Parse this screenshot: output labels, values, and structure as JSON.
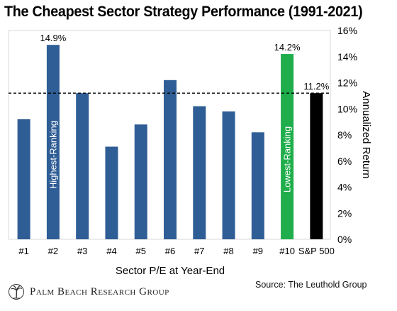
{
  "title": "The Cheapest Sector Strategy Performance (1991-2021)",
  "source": "Source: The Leuthold Group",
  "logo": {
    "text": "Palm Beach Research Group",
    "icon": "palm-tree-icon"
  },
  "chart_data": {
    "type": "bar",
    "title": "The Cheapest Sector Strategy Performance (1991-2021)",
    "xlabel": "Sector P/E at Year-End",
    "ylabel": "Annualized  Return",
    "categories": [
      "#1",
      "#2",
      "#3",
      "#4",
      "#5",
      "#6",
      "#7",
      "#8",
      "#9",
      "#10",
      "S&P 500"
    ],
    "values": [
      9.2,
      14.9,
      11.2,
      7.1,
      8.8,
      12.2,
      10.2,
      9.8,
      8.2,
      14.2,
      11.2
    ],
    "bar_colors": [
      "#2f5d95",
      "#2f5d95",
      "#2f5d95",
      "#2f5d95",
      "#2f5d95",
      "#2f5d95",
      "#2f5d95",
      "#2f5d95",
      "#2f5d95",
      "#1fae4b",
      "#000000"
    ],
    "data_labels": [
      {
        "index": 1,
        "text": "14.9%"
      },
      {
        "index": 9,
        "text": "14.2%"
      },
      {
        "index": 10,
        "text": "11.2%"
      }
    ],
    "bar_annotations": [
      {
        "index": 1,
        "text": "Highest-Ranking"
      },
      {
        "index": 9,
        "text": "Lowest-Ranking"
      }
    ],
    "reference_line": {
      "value": 11.2,
      "style": "dashed",
      "color": "#000000"
    },
    "ylim": [
      0,
      16
    ],
    "yticks": [
      "0%",
      "2%",
      "4%",
      "6%",
      "8%",
      "10%",
      "12%",
      "14%",
      "16%"
    ],
    "ytick_values": [
      0,
      2,
      4,
      6,
      8,
      10,
      12,
      14,
      16
    ],
    "y_axis_side": "right",
    "grid": false,
    "legend": "none"
  }
}
